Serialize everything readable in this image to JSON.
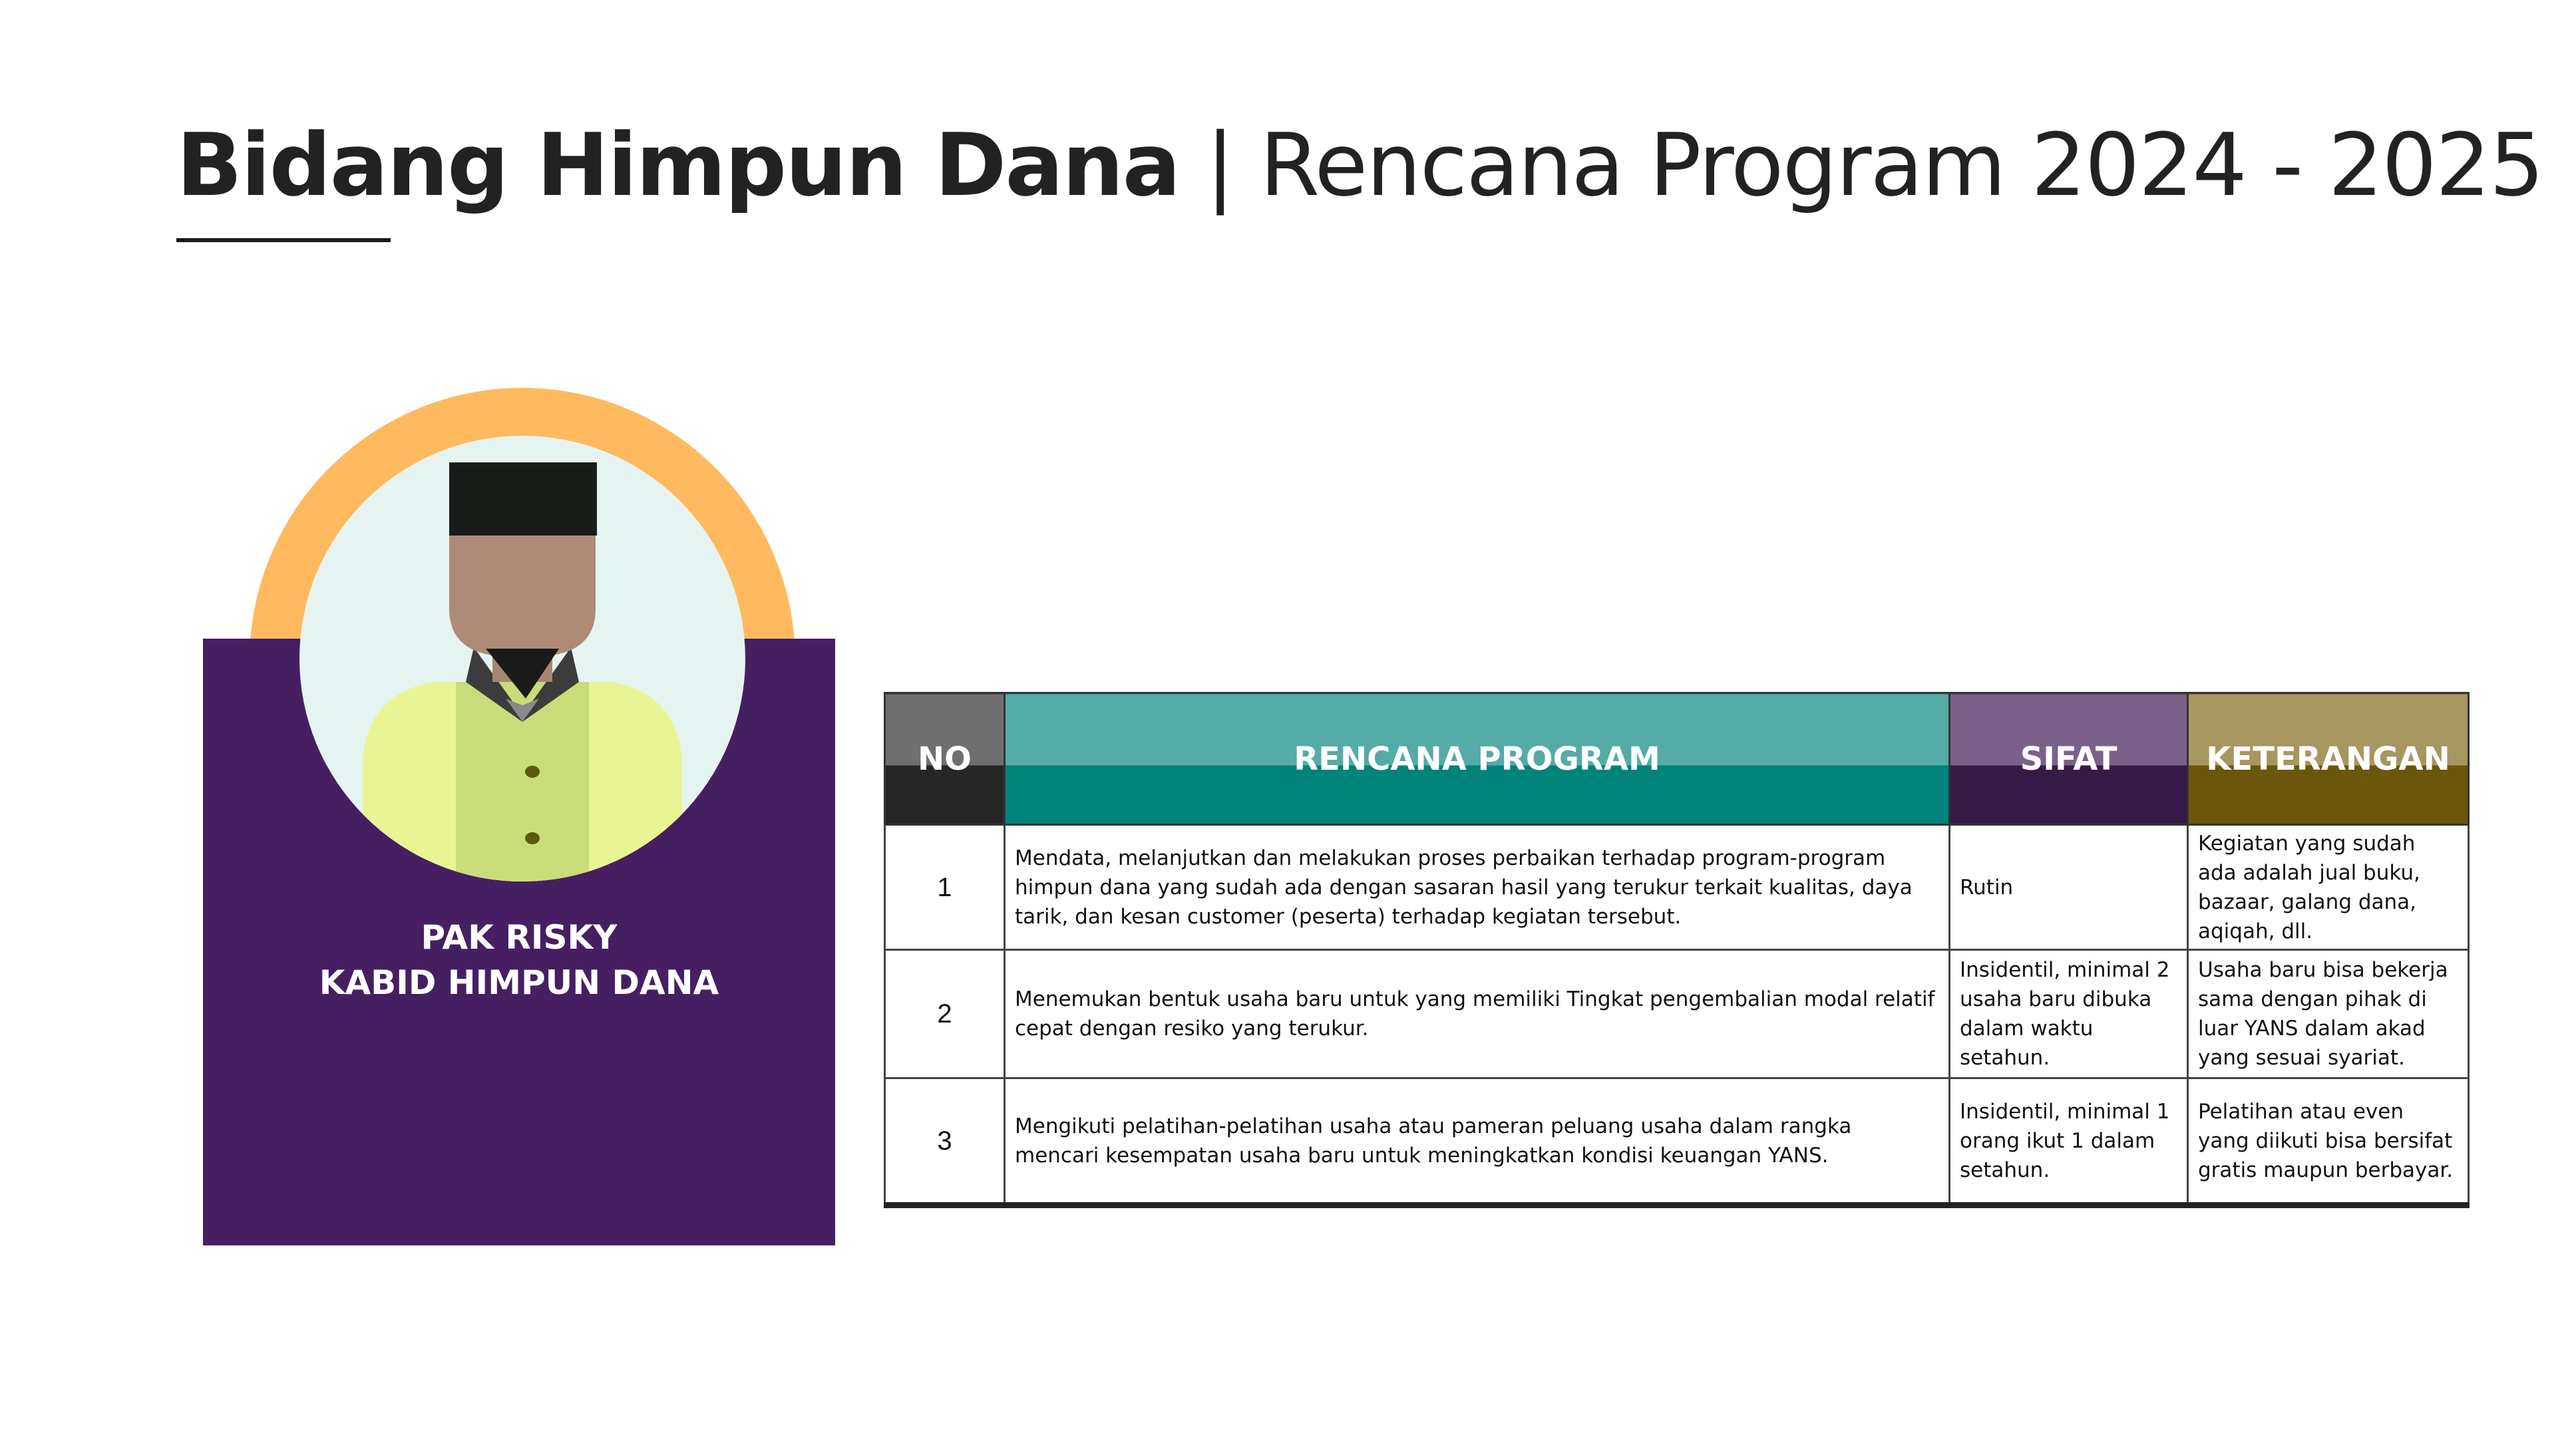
{
  "header": {
    "title_bold": "Bidang Himpun Dana",
    "title_rest": " | Rencana Program 2024 - 2025"
  },
  "profile": {
    "name": "PAK RISKY",
    "role": "KABID HIMPUN DANA",
    "avatar_icon": "person-with-peci-icon",
    "colors": {
      "ring": "#ffba5f",
      "card": "#461f63"
    }
  },
  "table": {
    "headers": {
      "no": "NO",
      "program": "RENCANA PROGRAM",
      "sifat": "SIFAT",
      "keterangan": "KETERANGAN"
    },
    "rows": [
      {
        "no": "1",
        "program": "Mendata, melanjutkan dan melakukan proses perbaikan terhadap program-program himpun dana yang sudah ada dengan sasaran hasil yang terukur terkait kualitas, daya tarik, dan kesan customer (peserta) terhadap kegiatan tersebut.",
        "sifat": "Rutin",
        "keterangan": "Kegiatan yang sudah ada adalah jual buku, bazaar, galang dana, aqiqah, dll."
      },
      {
        "no": "2",
        "program": "Menemukan bentuk usaha baru untuk yang memiliki Tingkat pengembalian modal relatif cepat dengan resiko yang terukur.",
        "sifat": "Insidentil, minimal 2 usaha baru dibuka dalam waktu setahun.",
        "keterangan": "Usaha baru bisa bekerja sama dengan pihak di luar YANS dalam akad yang sesuai syariat."
      },
      {
        "no": "3",
        "program": "Mengikuti pelatihan-pelatihan usaha atau pameran peluang usaha dalam rangka mencari kesempatan usaha baru untuk meningkatkan kondisi keuangan YANS.",
        "sifat": "Insidentil, minimal 1 orang ikut 1 dalam setahun.",
        "keterangan": "Pelatihan atau even yang diikuti bisa bersifat gratis maupun berbayar."
      }
    ]
  }
}
